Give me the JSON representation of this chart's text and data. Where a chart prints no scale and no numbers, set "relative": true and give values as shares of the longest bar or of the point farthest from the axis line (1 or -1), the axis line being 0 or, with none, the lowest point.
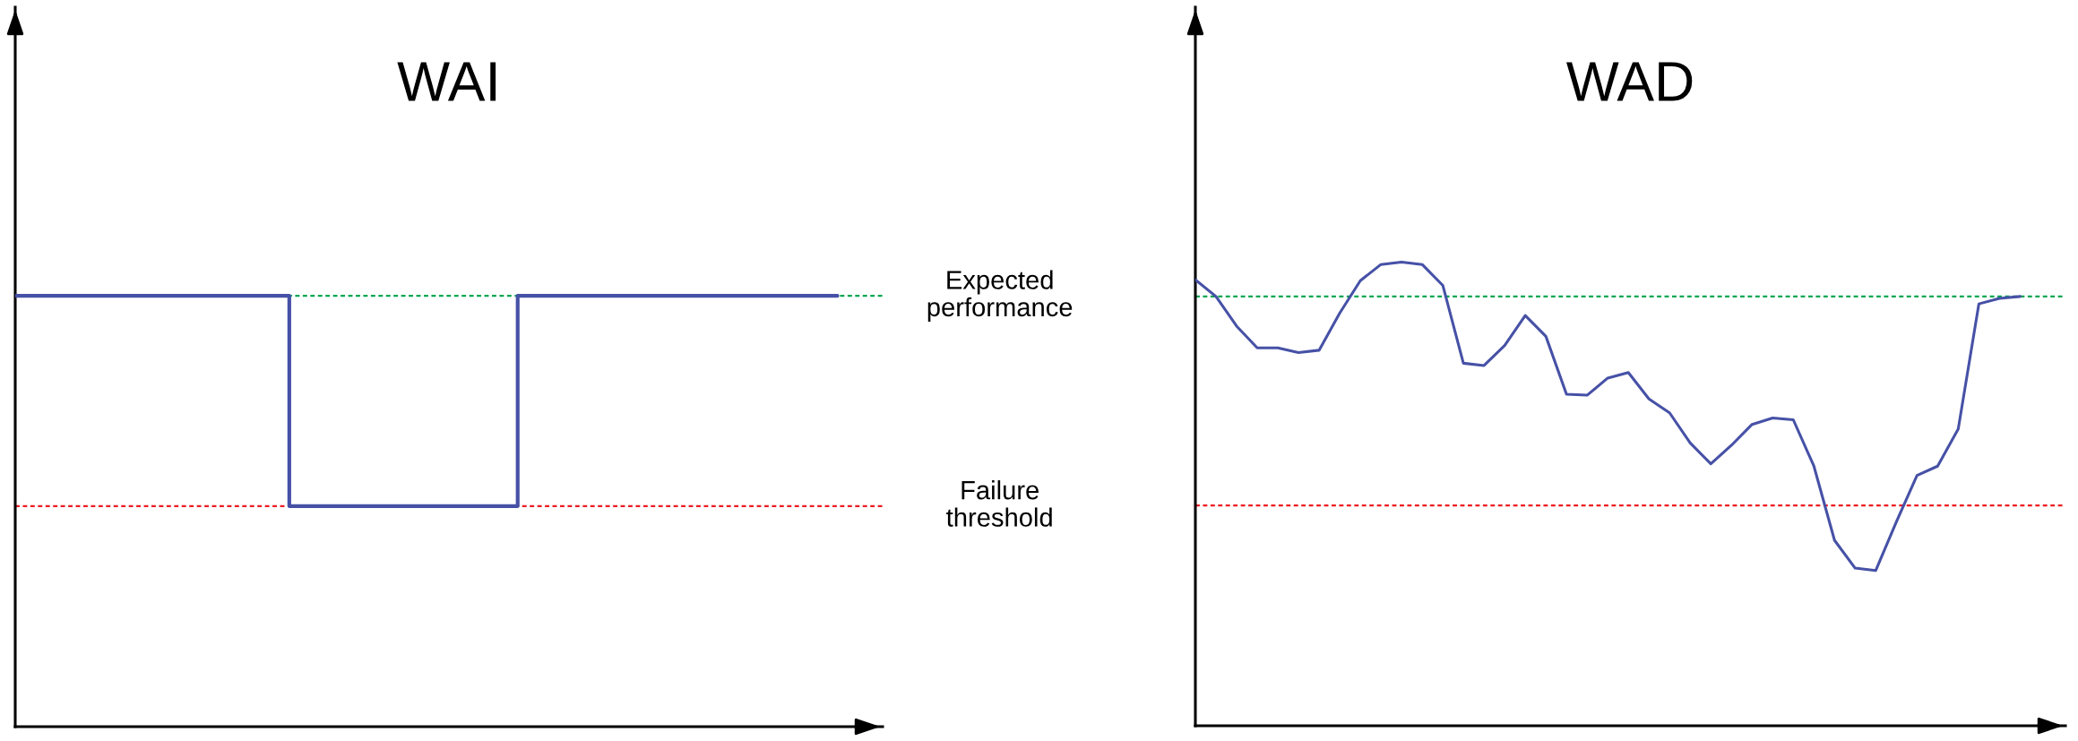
{
  "chart_data": [
    {
      "type": "step",
      "title": "WAI",
      "relative": true,
      "categories": [
        null,
        null,
        null,
        null,
        null,
        null,
        null,
        null,
        null,
        null,
        null,
        null,
        null,
        null,
        null,
        null,
        null,
        null,
        null
      ],
      "series": [
        {
          "color": "#4651a6",
          "values": [
            1,
            1,
            1,
            1,
            1,
            1,
            0.512,
            0.512,
            0.512,
            0.512,
            0.512,
            1,
            1,
            1,
            1,
            1,
            1,
            1,
            1
          ]
        }
      ],
      "ref_lines": [
        {
          "axis": "y",
          "value": 1,
          "label": "Expected\nperformance",
          "color": "#00a651",
          "line_style": "dotted"
        },
        {
          "axis": "y",
          "value": 0.512,
          "label": "Failure\nthreshold",
          "color": "#ed1c24",
          "line_style": "dotted"
        }
      ],
      "tick_labels": false,
      "marker": "none",
      "line_style": "solid"
    },
    {
      "type": "line",
      "title": "WAD",
      "relative": true,
      "categories": [
        null,
        null,
        null,
        null,
        null,
        null,
        null,
        null,
        null,
        null,
        null,
        null,
        null,
        null,
        null,
        null,
        null,
        null,
        null,
        null,
        null,
        null,
        null,
        null,
        null,
        null,
        null,
        null,
        null,
        null,
        null,
        null,
        null,
        null,
        null,
        null,
        null,
        null,
        null,
        null,
        null
      ],
      "series": [
        {
          "color": "#4651a6",
          "values": [
            0.962,
            0.926,
            0.862,
            0.815,
            0.815,
            0.805,
            0.81,
            0.89,
            0.96,
            0.995,
            1.0,
            0.995,
            0.95,
            0.782,
            0.777,
            0.82,
            0.885,
            0.84,
            0.715,
            0.713,
            0.75,
            0.762,
            0.705,
            0.675,
            0.61,
            0.565,
            0.605,
            0.65,
            0.664,
            0.66,
            0.56,
            0.4,
            0.34,
            0.335,
            0.44,
            0.54,
            0.56,
            0.64,
            0.91,
            0.922,
            0.926
          ]
        }
      ],
      "ref_lines": [
        {
          "axis": "y",
          "value": 0.926,
          "color": "#00a651",
          "line_style": "dotted"
        },
        {
          "axis": "y",
          "value": 0.475,
          "color": "#ed1c24",
          "line_style": "dotted"
        }
      ],
      "tick_labels": false,
      "marker": "none",
      "line_style": "solid"
    }
  ]
}
